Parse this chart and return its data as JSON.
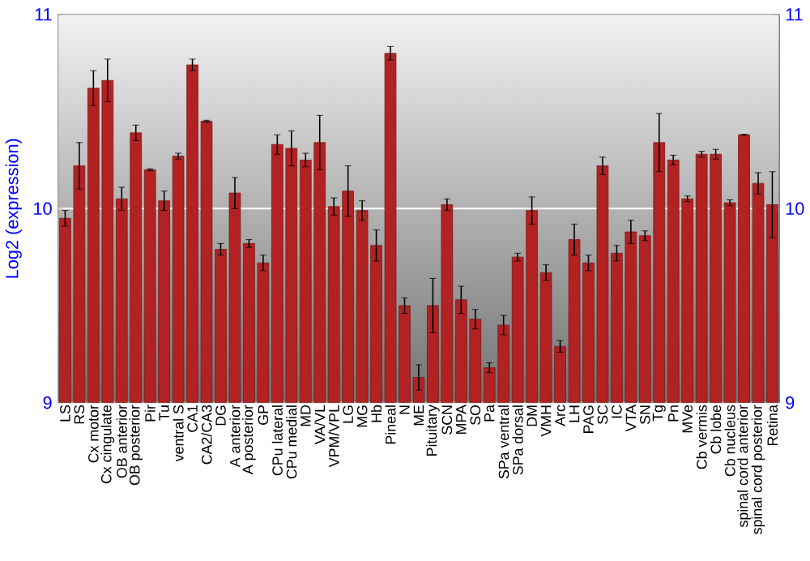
{
  "chart_data": {
    "type": "bar",
    "ylabel": "Log2 (expression)",
    "categories": [
      "LS",
      "RS",
      "Cx motor",
      "Cx cingulate",
      "OB anterior",
      "OB posterior",
      "Pir",
      "Tu",
      "ventral S",
      "CA1",
      "CA2/CA3",
      "DG",
      "A anterior",
      "A posterior",
      "GP",
      "CPu lateral",
      "CPu medial",
      "MD",
      "VA/VL",
      "VPM/VPL",
      "LG",
      "MG",
      "Hb",
      "Pineal",
      "N",
      "ME",
      "Pituitary",
      "SCN",
      "MPA",
      "SO",
      "Pa",
      "SPa ventral",
      "SPa dorsal",
      "DM",
      "VMH",
      "Arc",
      "LH",
      "PAG",
      "SC",
      "IC",
      "VTA",
      "SN",
      "Tg",
      "Pn",
      "MVe",
      "Cb vermis",
      "Cb lobe",
      "Cb nucleus",
      "spinal cord anterior",
      "spinal cord posterior",
      "Retina"
    ],
    "values": [
      9.95,
      10.22,
      10.62,
      10.66,
      10.05,
      10.39,
      10.2,
      10.04,
      10.27,
      10.74,
      10.45,
      9.79,
      10.08,
      9.82,
      9.72,
      10.33,
      10.31,
      10.25,
      10.34,
      10.01,
      10.09,
      9.99,
      9.81,
      10.8,
      9.5,
      9.13,
      9.5,
      10.02,
      9.53,
      9.43,
      9.18,
      9.4,
      9.75,
      9.99,
      9.67,
      9.29,
      9.84,
      9.72,
      10.22,
      9.77,
      9.88,
      9.86,
      10.34,
      10.25,
      10.05,
      10.28,
      10.28,
      10.03,
      10.38,
      10.13,
      10.02
    ],
    "errors": [
      0.04,
      0.12,
      0.09,
      0.11,
      0.06,
      0.04,
      0.005,
      0.05,
      0.015,
      0.03,
      0.005,
      0.03,
      0.08,
      0.02,
      0.04,
      0.05,
      0.09,
      0.035,
      0.14,
      0.045,
      0.13,
      0.05,
      0.08,
      0.035,
      0.04,
      0.065,
      0.14,
      0.03,
      0.07,
      0.05,
      0.025,
      0.05,
      0.02,
      0.07,
      0.04,
      0.03,
      0.08,
      0.04,
      0.045,
      0.04,
      0.06,
      0.025,
      0.15,
      0.025,
      0.015,
      0.015,
      0.025,
      0.015,
      0.003,
      0.055,
      0.17
    ],
    "color": "#b22222",
    "ylim": [
      9,
      11
    ],
    "yticks": [
      9,
      10,
      11
    ],
    "y2lim": [
      9,
      11
    ],
    "y2ticks": [
      9,
      10,
      11
    ],
    "grid": "y"
  }
}
